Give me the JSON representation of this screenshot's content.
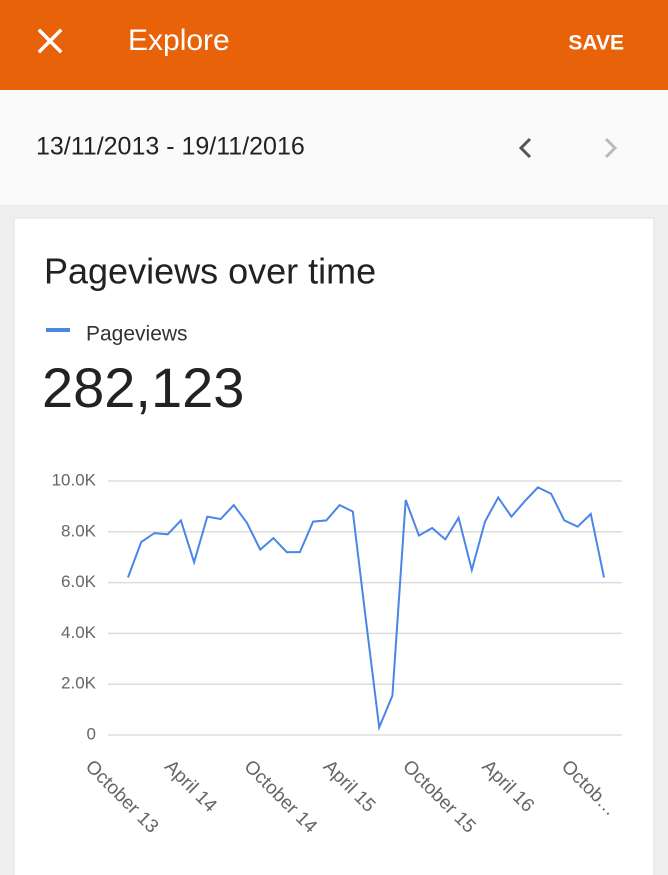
{
  "header": {
    "title": "Explore",
    "action": "SAVE"
  },
  "date_range": "13/11/2013 - 19/11/2016",
  "chart_data": {
    "type": "line",
    "title": "Pageviews over time",
    "total": "282,123",
    "categories": [
      "October 13",
      null,
      null,
      null,
      null,
      null,
      "April 14",
      null,
      null,
      null,
      null,
      null,
      "October 14",
      null,
      null,
      null,
      null,
      null,
      "April 15",
      null,
      null,
      null,
      null,
      null,
      "October 15",
      null,
      null,
      null,
      null,
      null,
      "April 16",
      null,
      null,
      null,
      null,
      null,
      "Octob…"
    ],
    "series": [
      {
        "name": "Pageviews",
        "color": "#4a86e8",
        "values": [
          6200,
          7600,
          7950,
          7900,
          8450,
          6800,
          8600,
          8500,
          9050,
          8350,
          7300,
          7750,
          7200,
          7200,
          8400,
          8450,
          9050,
          8800,
          4500,
          300,
          1550,
          9250,
          7850,
          8150,
          7700,
          8550,
          6500,
          8400,
          9350,
          8600,
          9200,
          9750,
          9500,
          8450,
          8200,
          8700,
          6200
        ]
      }
    ],
    "ylim": [
      0,
      10000
    ],
    "yticks": [
      0,
      {
        "value": 2000,
        "label": "2.0K"
      },
      {
        "value": 4000,
        "label": "4.0K"
      },
      {
        "value": 6000,
        "label": "6.0K"
      },
      {
        "value": 8000,
        "label": "8.0K"
      },
      {
        "value": 10000,
        "label": "10.0K"
      }
    ],
    "grid": true
  }
}
